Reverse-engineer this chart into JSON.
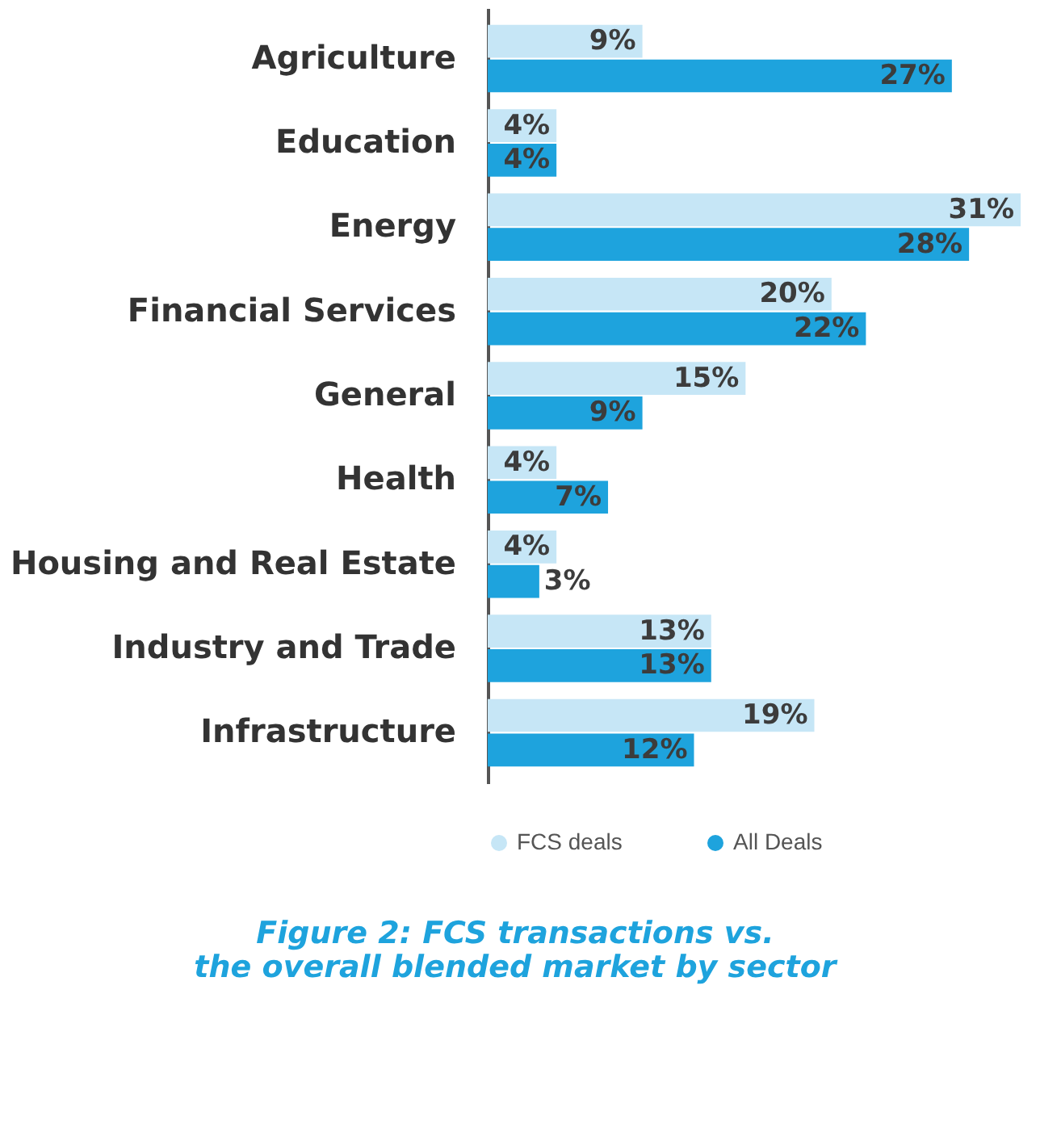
{
  "chart_data": {
    "type": "bar",
    "orientation": "horizontal",
    "title": "Figure 2: FCS transactions vs.\nthe overall blended market by sector",
    "categories": [
      "Agriculture",
      "Education",
      "Energy",
      "Financial Services",
      "General",
      "Health",
      "Housing and Real Estate",
      "Industry and Trade",
      "Infrastructure"
    ],
    "series": [
      {
        "name": "FCS deals",
        "color": "#c6e6f6",
        "values": [
          9,
          4,
          31,
          20,
          15,
          4,
          4,
          13,
          19
        ],
        "value_labels": [
          "9%",
          "4%",
          "31%",
          "20%",
          "15%",
          "4%",
          "4%",
          "13%",
          "19%"
        ]
      },
      {
        "name": "All Deals",
        "color": "#1ea3dd",
        "values": [
          27,
          4,
          28,
          22,
          9,
          7,
          3,
          13,
          12
        ],
        "value_labels": [
          "27%",
          "4%",
          "28%",
          "22%",
          "9%",
          "7%",
          "3%",
          "13%",
          "12%"
        ]
      }
    ],
    "legend": "bottom",
    "grid": false
  }
}
